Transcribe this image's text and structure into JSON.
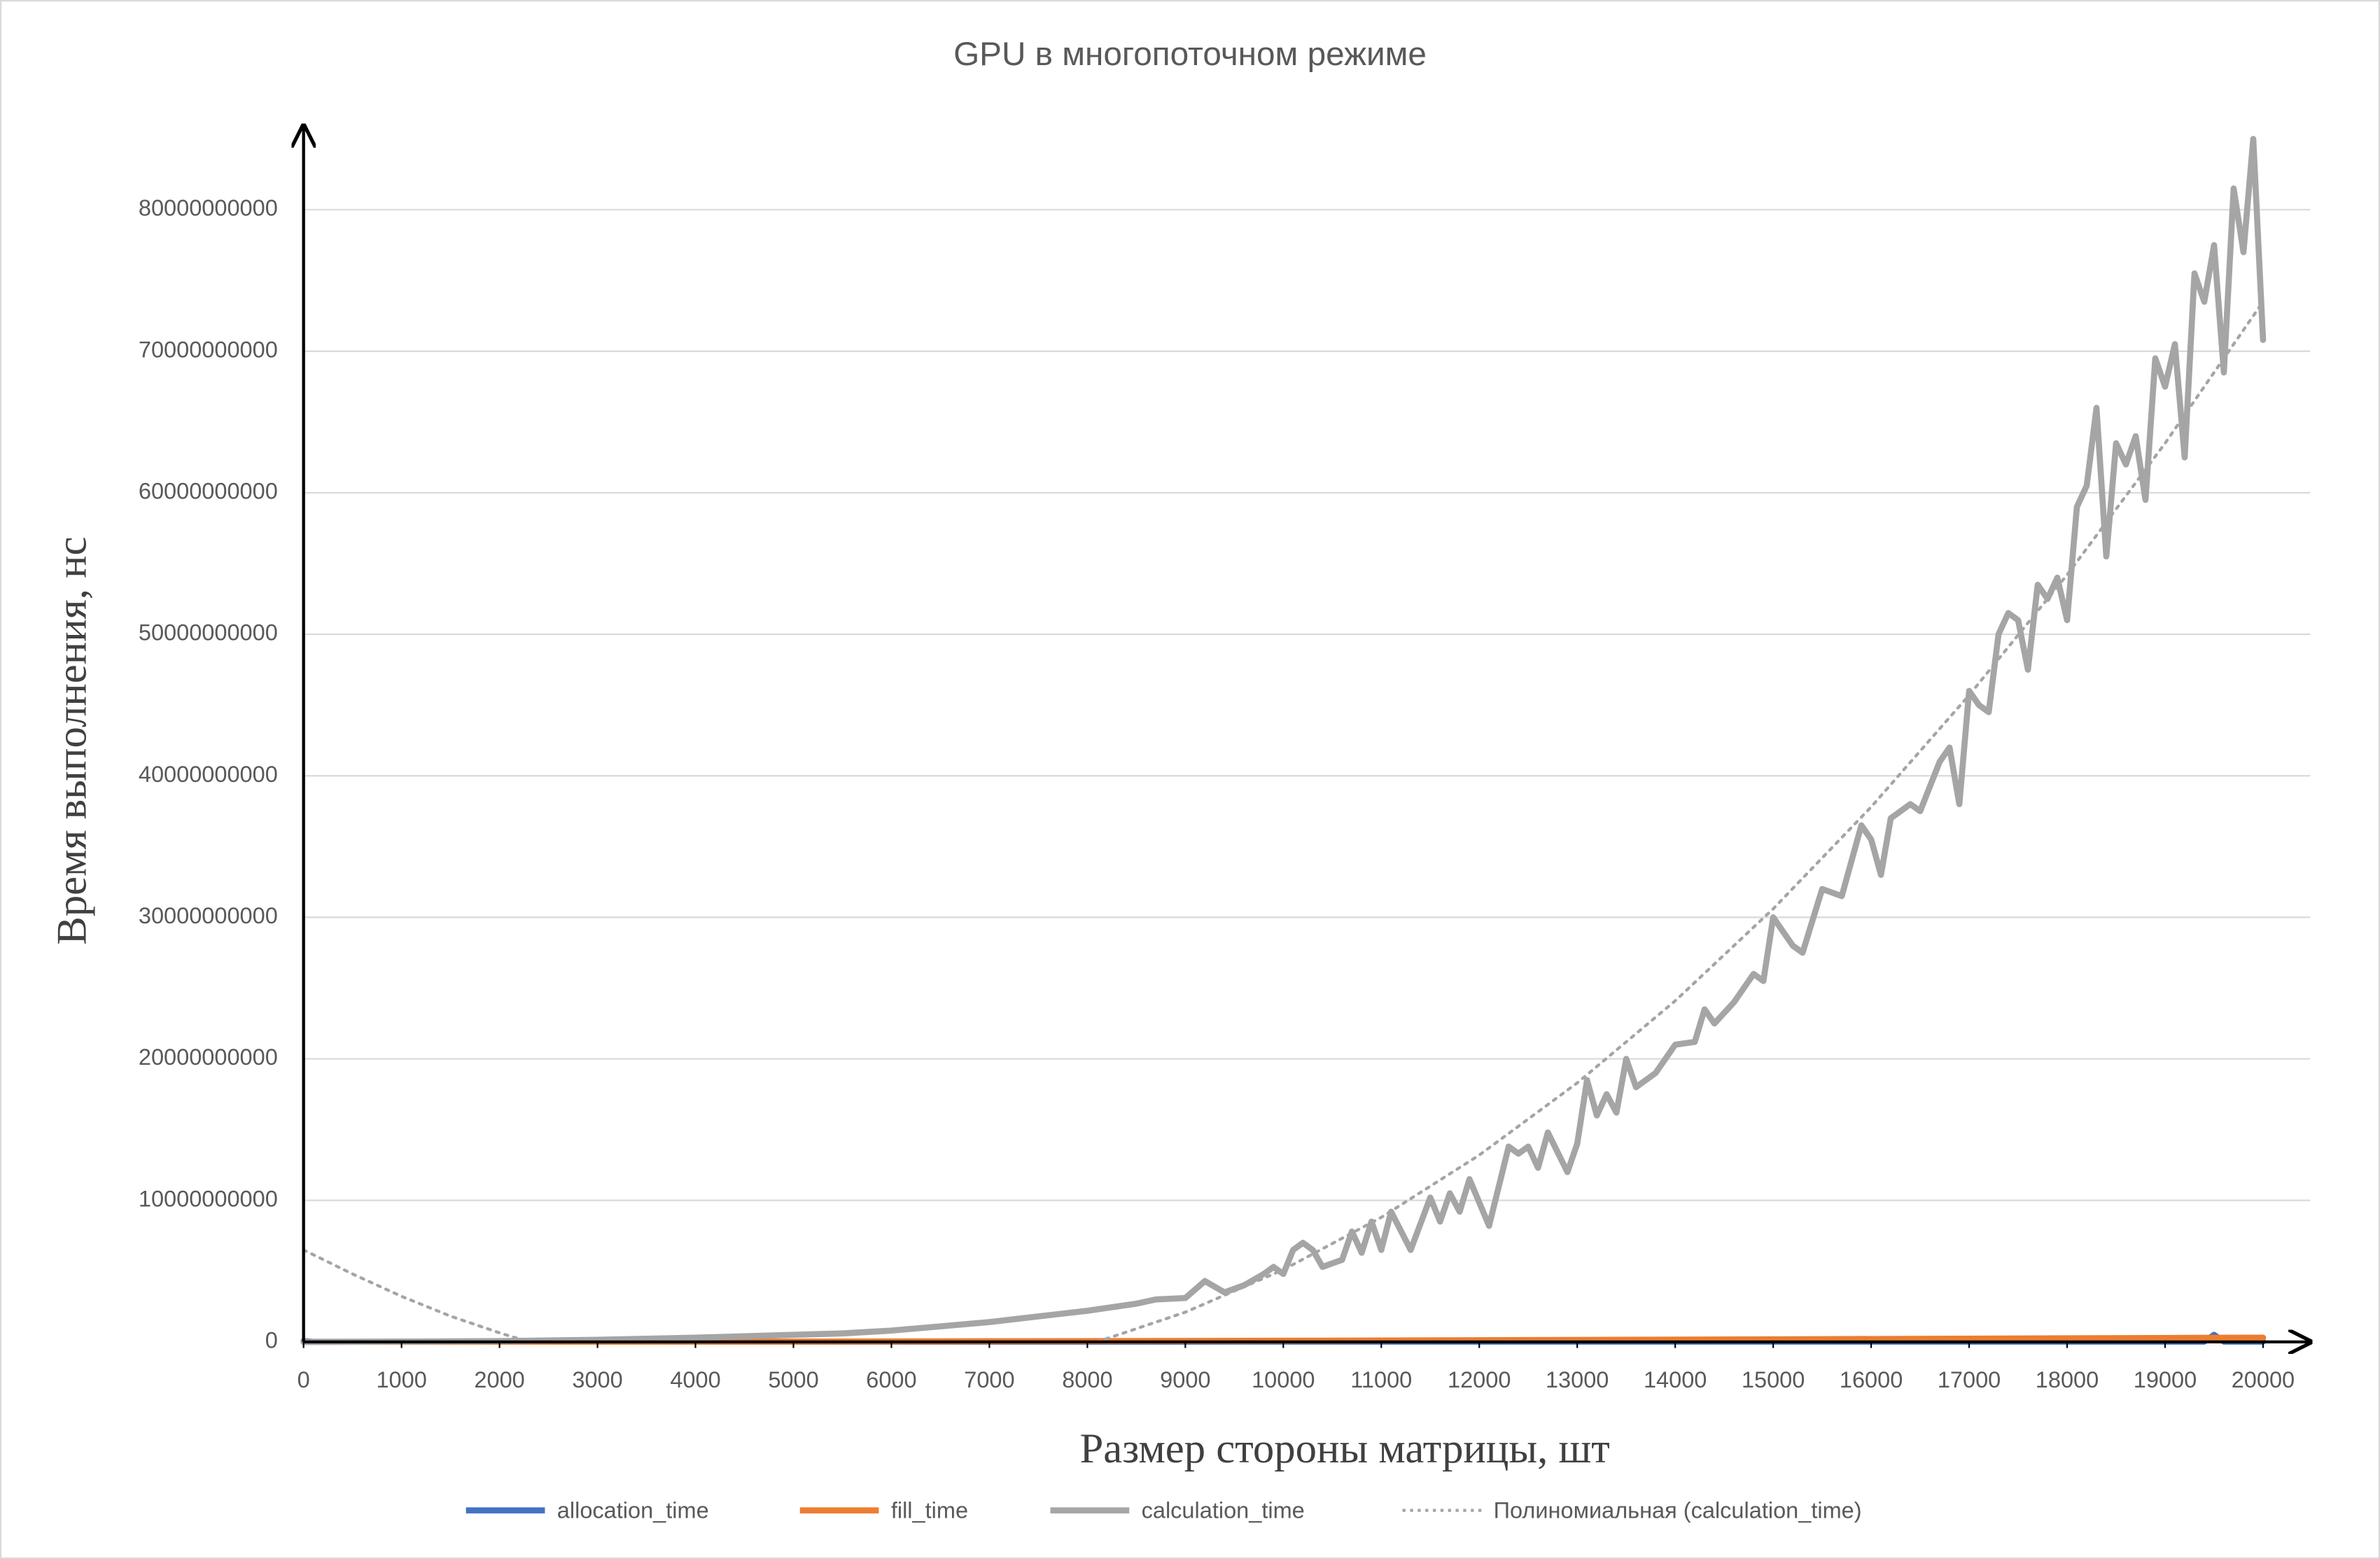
{
  "chart_data": {
    "type": "line",
    "title": "GPU в многопоточном режиме",
    "x_label": "Размер стороны матрицы, шт",
    "y_label": "Время выполнения, нс",
    "xlim": [
      0,
      20450
    ],
    "ylim": [
      0,
      85700000000.0
    ],
    "xticks": [
      0,
      1000,
      2000,
      3000,
      4000,
      5000,
      6000,
      7000,
      8000,
      9000,
      10000,
      11000,
      12000,
      13000,
      14000,
      15000,
      16000,
      17000,
      18000,
      19000,
      20000
    ],
    "yticks": [
      0,
      10000000000.0,
      20000000000.0,
      30000000000.0,
      40000000000.0,
      50000000000.0,
      60000000000.0,
      70000000000.0,
      80000000000.0
    ],
    "grid": true,
    "legend": "bottom",
    "series": [
      {
        "name": "allocation_time",
        "color": "#4472c4",
        "style": "solid",
        "x": [
          0,
          100,
          5000,
          10000,
          15000,
          19400,
          19500,
          19600,
          20000
        ],
        "values": [
          50000000.0,
          10000000.0,
          10000000.0,
          15000000.0,
          20000000.0,
          20000000.0,
          500000000.0,
          20000000.0,
          20000000.0
        ]
      },
      {
        "name": "fill_time",
        "color": "#ed7d31",
        "style": "solid",
        "x": [
          0,
          5000,
          10000,
          15000,
          20000
        ],
        "values": [
          0,
          20000000.0,
          80000000.0,
          180000000.0,
          300000000.0
        ]
      },
      {
        "name": "calculation_time",
        "color": "#a5a5a5",
        "style": "solid",
        "x": [
          0,
          1000,
          2000,
          3000,
          4000,
          5000,
          5500,
          6000,
          6500,
          7000,
          7500,
          8000,
          8300,
          8500,
          8700,
          9000,
          9200,
          9400,
          9600,
          9800,
          9900,
          10000,
          10100,
          10200,
          10300,
          10400,
          10600,
          10700,
          10800,
          10900,
          11000,
          11100,
          11300,
          11500,
          11600,
          11700,
          11800,
          11900,
          12100,
          12300,
          12400,
          12500,
          12600,
          12700,
          12900,
          13000,
          13100,
          13200,
          13300,
          13400,
          13500,
          13600,
          13800,
          14000,
          14200,
          14300,
          14400,
          14600,
          14800,
          14900,
          15000,
          15200,
          15300,
          15500,
          15700,
          15900,
          16000,
          16100,
          16200,
          16400,
          16500,
          16700,
          16800,
          16900,
          17000,
          17100,
          17200,
          17300,
          17400,
          17500,
          17600,
          17700,
          17800,
          17900,
          18000,
          18100,
          18200,
          18300,
          18400,
          18500,
          18600,
          18700,
          18800,
          18900,
          19000,
          19100,
          19200,
          19300,
          19400,
          19500,
          19600,
          19700,
          19800,
          19900,
          20000
        ],
        "values": [
          0,
          20000000.0,
          60000000.0,
          150000000.0,
          300000000.0,
          500000000.0,
          600000000.0,
          800000000.0,
          1100000000.0,
          1400000000.0,
          1800000000.0,
          2200000000.0,
          2500000000.0,
          2700000000.0,
          3000000000.0,
          3100000000.0,
          4300000000.0,
          3500000000.0,
          4000000000.0,
          4800000000.0,
          5300000000.0,
          4800000000.0,
          6500000000.0,
          7000000000.0,
          6500000000.0,
          5300000000.0,
          5800000000.0,
          7800000000.0,
          6300000000.0,
          8500000000.0,
          6500000000.0,
          9200000000.0,
          6500000000.0,
          10200000000.0,
          8500000000.0,
          10500000000.0,
          9200000000.0,
          11500000000.0,
          8200000000.0,
          13800000000.0,
          13300000000.0,
          13800000000.0,
          12300000000.0,
          14800000000.0,
          12000000000.0,
          14000000000.0,
          18500000000.0,
          16000000000.0,
          17500000000.0,
          16200000000.0,
          20000000000.0,
          18000000000.0,
          19000000000.0,
          21000000000.0,
          21200000000.0,
          23500000000.0,
          22500000000.0,
          24000000000.0,
          26000000000.0,
          25500000000.0,
          30000000000.0,
          28000000000.0,
          27500000000.0,
          32000000000.0,
          31500000000.0,
          36500000000.0,
          35500000000.0,
          33000000000.0,
          37000000000.0,
          38000000000.0,
          37500000000.0,
          41000000000.0,
          42000000000.0,
          38000000000.0,
          46000000000.0,
          45000000000.0,
          44500000000.0,
          50000000000.0,
          51500000000.0,
          51000000000.0,
          47500000000.0,
          53500000000.0,
          52500000000.0,
          54000000000.0,
          51000000000.0,
          59000000000.0,
          60500000000.0,
          66000000000.0,
          55500000000.0,
          63500000000.0,
          62000000000.0,
          64000000000.0,
          59500000000.0,
          69500000000.0,
          67500000000.0,
          70500000000.0,
          62500000000.0,
          75500000000.0,
          73500000000.0,
          77500000000.0,
          68500000000.0,
          81500000000.0,
          77000000000.0,
          85000000000.0,
          70800000000.0
        ]
      },
      {
        "name": "Полиномиальная (calculation_time)",
        "color": "#a5a5a5",
        "style": "dotted",
        "x": [
          0,
          500,
          1000,
          1500,
          2000,
          2300,
          5000,
          8100,
          9000,
          10000,
          11000,
          12000,
          13000,
          14000,
          15000,
          16000,
          17000,
          18000,
          19000,
          20000
        ],
        "values": [
          6500000000.0,
          4800000000.0,
          3220000000.0,
          1820000000.0,
          640000000.0,
          0,
          null,
          0,
          2100000000.0,
          5100000000.0,
          8800000000.0,
          13200000000.0,
          18300000000.0,
          24100000000.0,
          30600000000.0,
          37800000000.0,
          45700000000.0,
          54200000000.0,
          63500000000.0,
          73500000000.0
        ]
      }
    ]
  }
}
